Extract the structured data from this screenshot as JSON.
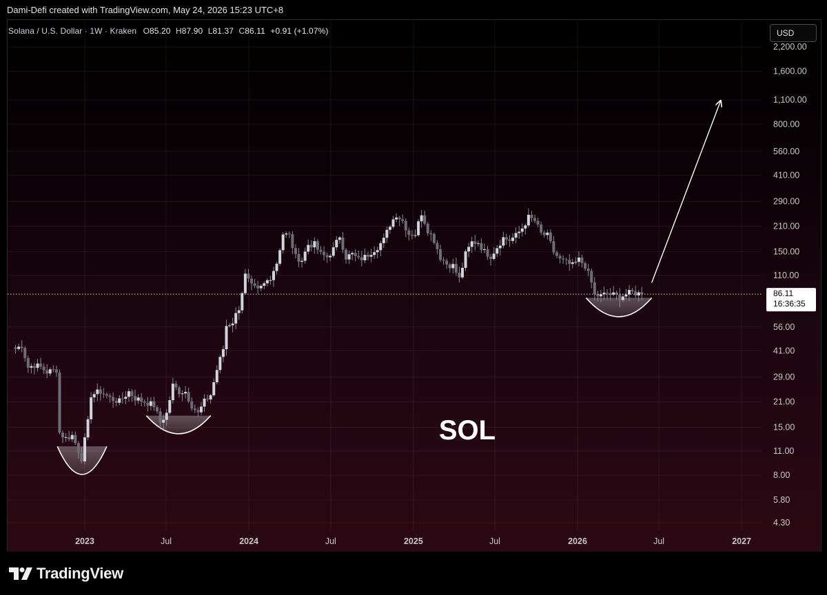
{
  "credit": "Dami-Defi created with TradingView.com, May 24, 2026 15:23 UTC+8",
  "legend": {
    "symbol": "Solana / U.S. Dollar · 1W · Kraken",
    "open_label": "O",
    "open": "85.20",
    "high_label": "H",
    "high": "87.90",
    "low_label": "L",
    "low": "81.37",
    "close_label": "C",
    "close": "86.11",
    "change": "+0.91 (+1.07%)"
  },
  "currency_button": "USD",
  "price_tag": {
    "price": "86.11",
    "countdown": "16:36:35"
  },
  "watermark": "SOL",
  "brand": "TradingView",
  "icons": {
    "logo": "tradingview-logo-icon"
  },
  "colors": {
    "candle": "#d1d4dc",
    "accent": "#ffffff",
    "background_bottom": "#2b0813"
  },
  "chart_data": {
    "type": "candlestick",
    "title": "Solana / U.S. Dollar · 1W · Kraken",
    "y_scale": "log",
    "y_ticks": [
      2200,
      1600,
      1100,
      800,
      560,
      410,
      290,
      210,
      150,
      110,
      56,
      41,
      29,
      21,
      15,
      11,
      8,
      5.8,
      4.3
    ],
    "y_tick_labels": [
      "2,200.00",
      "1,600.00",
      "1,100.00",
      "800.00",
      "560.00",
      "410.00",
      "290.00",
      "210.00",
      "150.00",
      "110.00",
      "56.00",
      "41.00",
      "29.00",
      "21.00",
      "15.00",
      "11.00",
      "8.00",
      "5.80",
      "4.30"
    ],
    "x_tick_labels": [
      {
        "label": "2023",
        "date": "2023-01-01",
        "bold": true
      },
      {
        "label": "Jul",
        "date": "2023-07-01",
        "bold": false
      },
      {
        "label": "2024",
        "date": "2024-01-01",
        "bold": true
      },
      {
        "label": "Jul",
        "date": "2024-07-01",
        "bold": false
      },
      {
        "label": "2025",
        "date": "2025-01-01",
        "bold": true
      },
      {
        "label": "Jul",
        "date": "2025-07-01",
        "bold": false
      },
      {
        "label": "2026",
        "date": "2026-01-01",
        "bold": true
      },
      {
        "label": "Jul",
        "date": "2026-07-01",
        "bold": false
      },
      {
        "label": "2027",
        "date": "2027-01-01",
        "bold": true
      }
    ],
    "current_price": 86.11,
    "anchors": [
      {
        "date": "2022-07-31",
        "price": 42
      },
      {
        "date": "2022-08-14",
        "price": 44
      },
      {
        "date": "2022-08-28",
        "price": 33
      },
      {
        "date": "2022-09-11",
        "price": 34
      },
      {
        "date": "2022-09-25",
        "price": 33
      },
      {
        "date": "2022-10-09",
        "price": 31
      },
      {
        "date": "2022-10-30",
        "price": 32
      },
      {
        "date": "2022-11-06",
        "price": 14
      },
      {
        "date": "2022-11-20",
        "price": 13
      },
      {
        "date": "2022-12-04",
        "price": 13.5
      },
      {
        "date": "2022-12-25",
        "price": 10
      },
      {
        "date": "2023-01-08",
        "price": 16
      },
      {
        "date": "2023-01-15",
        "price": 23
      },
      {
        "date": "2023-02-05",
        "price": 24
      },
      {
        "date": "2023-02-26",
        "price": 22
      },
      {
        "date": "2023-03-19",
        "price": 21
      },
      {
        "date": "2023-04-09",
        "price": 24
      },
      {
        "date": "2023-04-23",
        "price": 22
      },
      {
        "date": "2023-05-14",
        "price": 21
      },
      {
        "date": "2023-06-04",
        "price": 20
      },
      {
        "date": "2023-06-18",
        "price": 16
      },
      {
        "date": "2023-07-02",
        "price": 18
      },
      {
        "date": "2023-07-16",
        "price": 26
      },
      {
        "date": "2023-07-30",
        "price": 24
      },
      {
        "date": "2023-08-13",
        "price": 24
      },
      {
        "date": "2023-08-27",
        "price": 20
      },
      {
        "date": "2023-09-10",
        "price": 18
      },
      {
        "date": "2023-09-24",
        "price": 21
      },
      {
        "date": "2023-10-08",
        "price": 23
      },
      {
        "date": "2023-10-22",
        "price": 32
      },
      {
        "date": "2023-11-05",
        "price": 42
      },
      {
        "date": "2023-11-12",
        "price": 57
      },
      {
        "date": "2023-11-26",
        "price": 60
      },
      {
        "date": "2023-12-10",
        "price": 72
      },
      {
        "date": "2023-12-24",
        "price": 110
      },
      {
        "date": "2024-01-07",
        "price": 95
      },
      {
        "date": "2024-01-21",
        "price": 90
      },
      {
        "date": "2024-02-04",
        "price": 98
      },
      {
        "date": "2024-02-18",
        "price": 108
      },
      {
        "date": "2024-03-03",
        "price": 130
      },
      {
        "date": "2024-03-17",
        "price": 190
      },
      {
        "date": "2024-03-31",
        "price": 185
      },
      {
        "date": "2024-04-14",
        "price": 140
      },
      {
        "date": "2024-04-28",
        "price": 135
      },
      {
        "date": "2024-05-12",
        "price": 165
      },
      {
        "date": "2024-05-26",
        "price": 165
      },
      {
        "date": "2024-06-09",
        "price": 145
      },
      {
        "date": "2024-06-23",
        "price": 140
      },
      {
        "date": "2024-07-07",
        "price": 155
      },
      {
        "date": "2024-07-21",
        "price": 185
      },
      {
        "date": "2024-08-04",
        "price": 140
      },
      {
        "date": "2024-08-18",
        "price": 145
      },
      {
        "date": "2024-09-01",
        "price": 135
      },
      {
        "date": "2024-09-15",
        "price": 140
      },
      {
        "date": "2024-09-29",
        "price": 150
      },
      {
        "date": "2024-10-13",
        "price": 160
      },
      {
        "date": "2024-10-27",
        "price": 175
      },
      {
        "date": "2024-11-10",
        "price": 215
      },
      {
        "date": "2024-11-24",
        "price": 245
      },
      {
        "date": "2024-12-08",
        "price": 225
      },
      {
        "date": "2024-12-22",
        "price": 190
      },
      {
        "date": "2025-01-05",
        "price": 190
      },
      {
        "date": "2025-01-19",
        "price": 250
      },
      {
        "date": "2025-02-02",
        "price": 200
      },
      {
        "date": "2025-02-16",
        "price": 175
      },
      {
        "date": "2025-03-02",
        "price": 140
      },
      {
        "date": "2025-03-16",
        "price": 128
      },
      {
        "date": "2025-03-30",
        "price": 125
      },
      {
        "date": "2025-04-13",
        "price": 105
      },
      {
        "date": "2025-04-27",
        "price": 145
      },
      {
        "date": "2025-05-11",
        "price": 170
      },
      {
        "date": "2025-05-25",
        "price": 170
      },
      {
        "date": "2025-06-08",
        "price": 150
      },
      {
        "date": "2025-06-22",
        "price": 142
      },
      {
        "date": "2025-07-06",
        "price": 160
      },
      {
        "date": "2025-07-20",
        "price": 180
      },
      {
        "date": "2025-08-03",
        "price": 175
      },
      {
        "date": "2025-08-17",
        "price": 185
      },
      {
        "date": "2025-08-31",
        "price": 205
      },
      {
        "date": "2025-09-14",
        "price": 235
      },
      {
        "date": "2025-09-28",
        "price": 225
      },
      {
        "date": "2025-10-12",
        "price": 190
      },
      {
        "date": "2025-10-26",
        "price": 185
      },
      {
        "date": "2025-11-09",
        "price": 150
      },
      {
        "date": "2025-11-23",
        "price": 135
      },
      {
        "date": "2025-12-07",
        "price": 130
      },
      {
        "date": "2025-12-21",
        "price": 125
      },
      {
        "date": "2026-01-04",
        "price": 135
      },
      {
        "date": "2026-01-18",
        "price": 125
      },
      {
        "date": "2026-02-01",
        "price": 100
      },
      {
        "date": "2026-02-08",
        "price": 85
      },
      {
        "date": "2026-02-22",
        "price": 84
      },
      {
        "date": "2026-03-08",
        "price": 87
      },
      {
        "date": "2026-03-22",
        "price": 85
      },
      {
        "date": "2026-04-05",
        "price": 83
      },
      {
        "date": "2026-04-19",
        "price": 86
      },
      {
        "date": "2026-05-03",
        "price": 88
      },
      {
        "date": "2026-05-24",
        "price": 86.11
      }
    ],
    "annotations": {
      "rounded_bottoms": [
        {
          "from": "2022-11-01",
          "to": "2023-02-19",
          "top_price": 11.7,
          "low_price": 8.1
        },
        {
          "from": "2023-05-18",
          "to": "2023-10-08",
          "top_price": 17.5,
          "low_price": 13.8
        },
        {
          "from": "2026-01-20",
          "to": "2026-06-15",
          "top_price": 82,
          "low_price": 64
        }
      ],
      "arrow": {
        "from_date": "2026-06-15",
        "from_price": 100,
        "to_date": "2026-11-15",
        "to_price": 1080
      }
    }
  }
}
